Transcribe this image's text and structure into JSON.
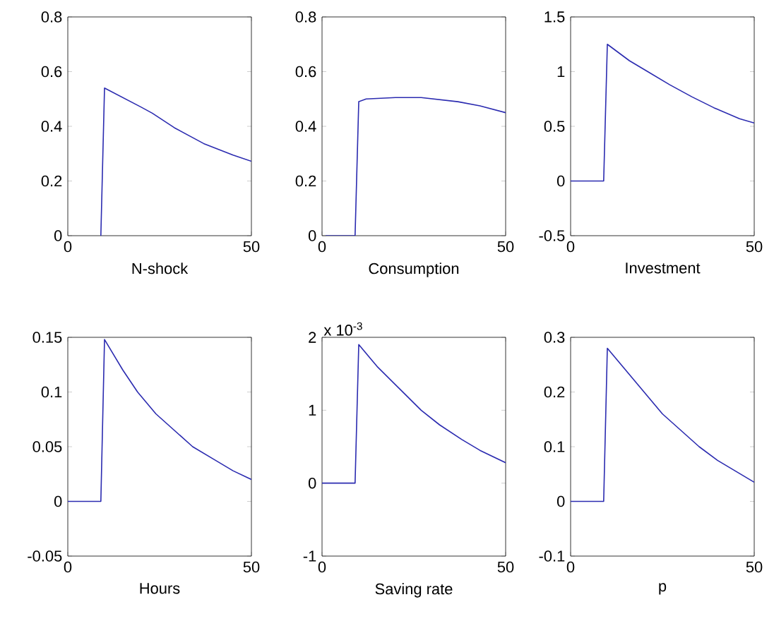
{
  "chart_data": [
    {
      "type": "line",
      "xlabel": "N-shock",
      "color": "#2b2bb0",
      "xlim": [
        0,
        50
      ],
      "ylim": [
        0,
        0.8
      ],
      "xticks": [
        0,
        50
      ],
      "yticks": [
        0,
        0.2,
        0.4,
        0.6,
        0.8
      ],
      "x": [
        9,
        10,
        15,
        20,
        23,
        29,
        37,
        45,
        50
      ],
      "values": [
        0,
        0.54,
        0.505,
        0.47,
        0.448,
        0.395,
        0.337,
        0.295,
        0.272
      ]
    },
    {
      "type": "line",
      "xlabel": "Consumption",
      "color": "#2b2bb0",
      "xlim": [
        0,
        50
      ],
      "ylim": [
        0,
        0.8
      ],
      "xticks": [
        0,
        50
      ],
      "yticks": [
        0,
        0.2,
        0.4,
        0.6,
        0.8
      ],
      "x": [
        1,
        9,
        10,
        12,
        20,
        27,
        37,
        43,
        50
      ],
      "values": [
        0,
        0,
        0.49,
        0.5,
        0.505,
        0.505,
        0.49,
        0.475,
        0.45
      ]
    },
    {
      "type": "line",
      "xlabel": "Investment",
      "color": "#2b2bb0",
      "xlim": [
        0,
        50
      ],
      "ylim": [
        -0.5,
        1.5
      ],
      "xticks": [
        0,
        50
      ],
      "yticks": [
        -0.5,
        0,
        0.5,
        1,
        1.5
      ],
      "x": [
        0,
        9,
        10,
        16,
        21,
        27,
        33,
        39,
        46,
        50
      ],
      "values": [
        0,
        0,
        1.25,
        1.1,
        1.0,
        0.88,
        0.77,
        0.67,
        0.57,
        0.53
      ]
    },
    {
      "type": "line",
      "xlabel": "Hours",
      "color": "#2b2bb0",
      "xlim": [
        0,
        50
      ],
      "ylim": [
        -0.05,
        0.15
      ],
      "xticks": [
        0,
        50
      ],
      "yticks": [
        -0.05,
        0,
        0.05,
        0.1,
        0.15
      ],
      "x": [
        0,
        9,
        10,
        15,
        19,
        24,
        29,
        34,
        40,
        45,
        50
      ],
      "values": [
        0,
        0,
        0.148,
        0.12,
        0.1,
        0.08,
        0.065,
        0.05,
        0.038,
        0.028,
        0.02
      ]
    },
    {
      "type": "line",
      "xlabel": "Saving rate",
      "color": "#2b2bb0",
      "xlim": [
        0,
        50
      ],
      "ylim": [
        -1,
        2
      ],
      "xticks": [
        0,
        50
      ],
      "yticks": [
        -1,
        0,
        1,
        2
      ],
      "annotations": [
        "x 10$^{-3}$"
      ],
      "x": [
        0,
        9,
        10,
        15,
        21,
        27,
        32,
        38,
        43,
        50
      ],
      "values": [
        0,
        0,
        1.9,
        1.6,
        1.3,
        1.0,
        0.8,
        0.6,
        0.45,
        0.28
      ]
    },
    {
      "type": "line",
      "xlabel": "p",
      "color": "#2b2bb0",
      "xlim": [
        0,
        50
      ],
      "ylim": [
        -0.1,
        0.3
      ],
      "xticks": [
        0,
        50
      ],
      "yticks": [
        -0.1,
        0,
        0.1,
        0.2,
        0.3
      ],
      "x": [
        0,
        9,
        10,
        15,
        20,
        25,
        30,
        35,
        40,
        45,
        50
      ],
      "values": [
        0,
        0,
        0.28,
        0.24,
        0.2,
        0.16,
        0.13,
        0.1,
        0.075,
        0.055,
        0.035
      ]
    }
  ]
}
